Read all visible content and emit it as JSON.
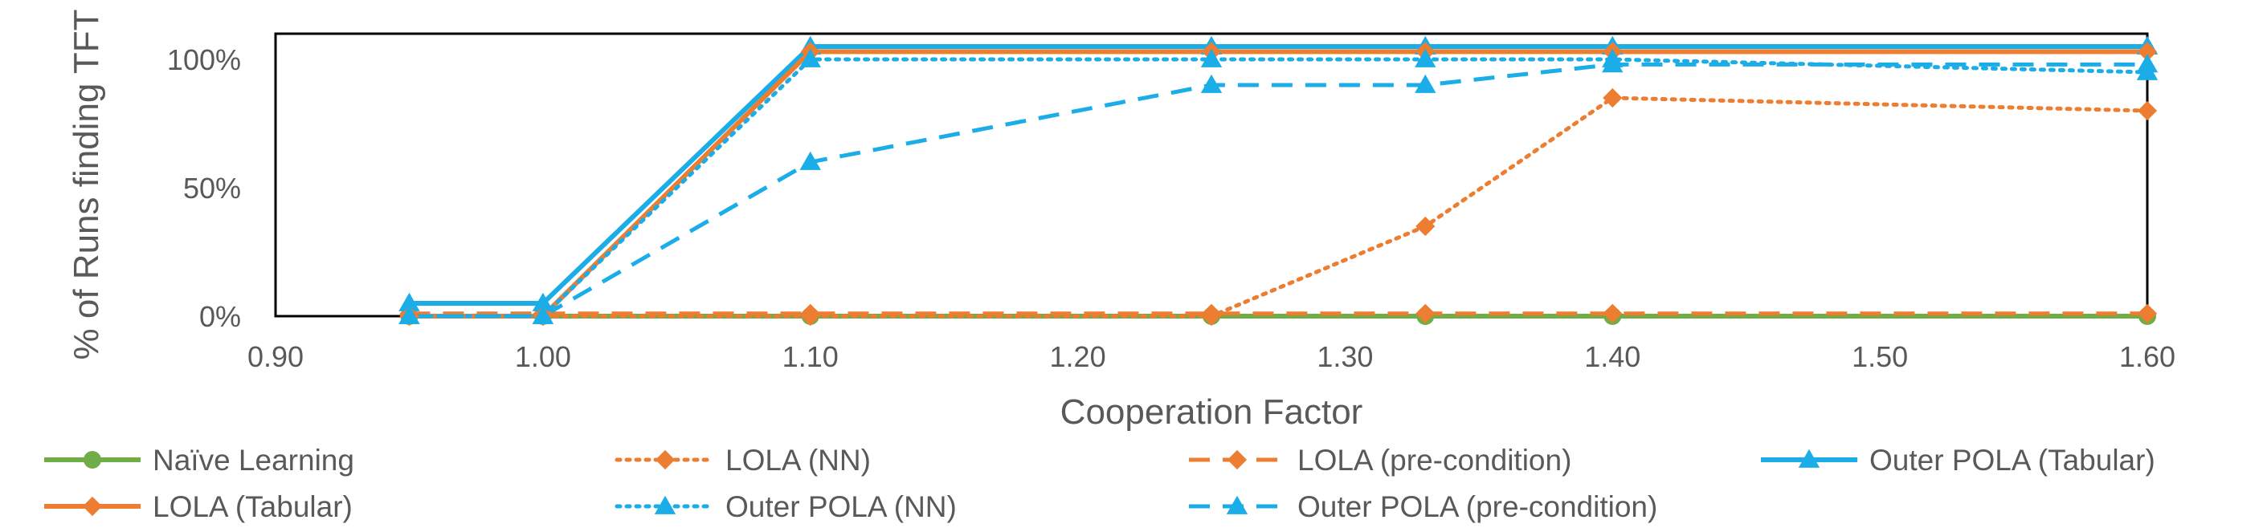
{
  "chart_data": {
    "type": "line",
    "title": "",
    "xlabel": "Cooperation Factor",
    "ylabel": "% of Runs finding TFT",
    "x_ticks": [
      "0.90",
      "1.00",
      "1.10",
      "1.20",
      "1.30",
      "1.40",
      "1.50",
      "1.60"
    ],
    "y_ticks": [
      "0%",
      "50%",
      "100%"
    ],
    "xlim": [
      0.9,
      1.6
    ],
    "ylim": [
      0,
      110
    ],
    "grid": false,
    "legend_position": "bottom",
    "series": [
      {
        "name": "Naïve Learning",
        "color": "#70AD47",
        "dash": "solid",
        "marker": "circle",
        "x": [
          0.95,
          1.0,
          1.1,
          1.25,
          1.33,
          1.4,
          1.6
        ],
        "y": [
          0,
          0,
          0,
          0,
          0,
          0,
          0
        ]
      },
      {
        "name": "LOLA (NN)",
        "color": "#ED7D31",
        "dash": "dotted",
        "marker": "diamond",
        "x": [
          0.95,
          1.0,
          1.1,
          1.25,
          1.33,
          1.4,
          1.6
        ],
        "y": [
          0,
          0,
          0,
          0,
          35,
          85,
          80
        ]
      },
      {
        "name": "LOLA (pre-condition)",
        "color": "#ED7D31",
        "dash": "dashed",
        "marker": "diamond",
        "x": [
          0.95,
          1.0,
          1.1,
          1.25,
          1.33,
          1.4,
          1.6
        ],
        "y": [
          1,
          1,
          1,
          1,
          1,
          1,
          1
        ]
      },
      {
        "name": "Outer POLA (Tabular)",
        "color": "#1AADE8",
        "dash": "solid",
        "marker": "triangle",
        "x": [
          0.95,
          1.0,
          1.1,
          1.25,
          1.33,
          1.4,
          1.6
        ],
        "y": [
          5,
          5,
          105,
          105,
          105,
          105,
          105
        ]
      },
      {
        "name": "LOLA (Tabular)",
        "color": "#ED7D31",
        "dash": "solid",
        "marker": "diamond",
        "x": [
          0.95,
          1.0,
          1.1,
          1.25,
          1.33,
          1.4,
          1.6
        ],
        "y": [
          0,
          0,
          103,
          103,
          103,
          103,
          103
        ]
      },
      {
        "name": "Outer POLA (NN)",
        "color": "#1AADE8",
        "dash": "dotted",
        "marker": "triangle",
        "x": [
          0.95,
          1.0,
          1.1,
          1.25,
          1.33,
          1.4,
          1.6
        ],
        "y": [
          0,
          0,
          100,
          100,
          100,
          100,
          95
        ]
      },
      {
        "name": "Outer POLA (pre-condition)",
        "color": "#1AADE8",
        "dash": "dashed",
        "marker": "triangle",
        "x": [
          0.95,
          1.0,
          1.1,
          1.25,
          1.33,
          1.4,
          1.6
        ],
        "y": [
          0,
          0,
          60,
          90,
          90,
          98,
          98
        ]
      }
    ]
  }
}
